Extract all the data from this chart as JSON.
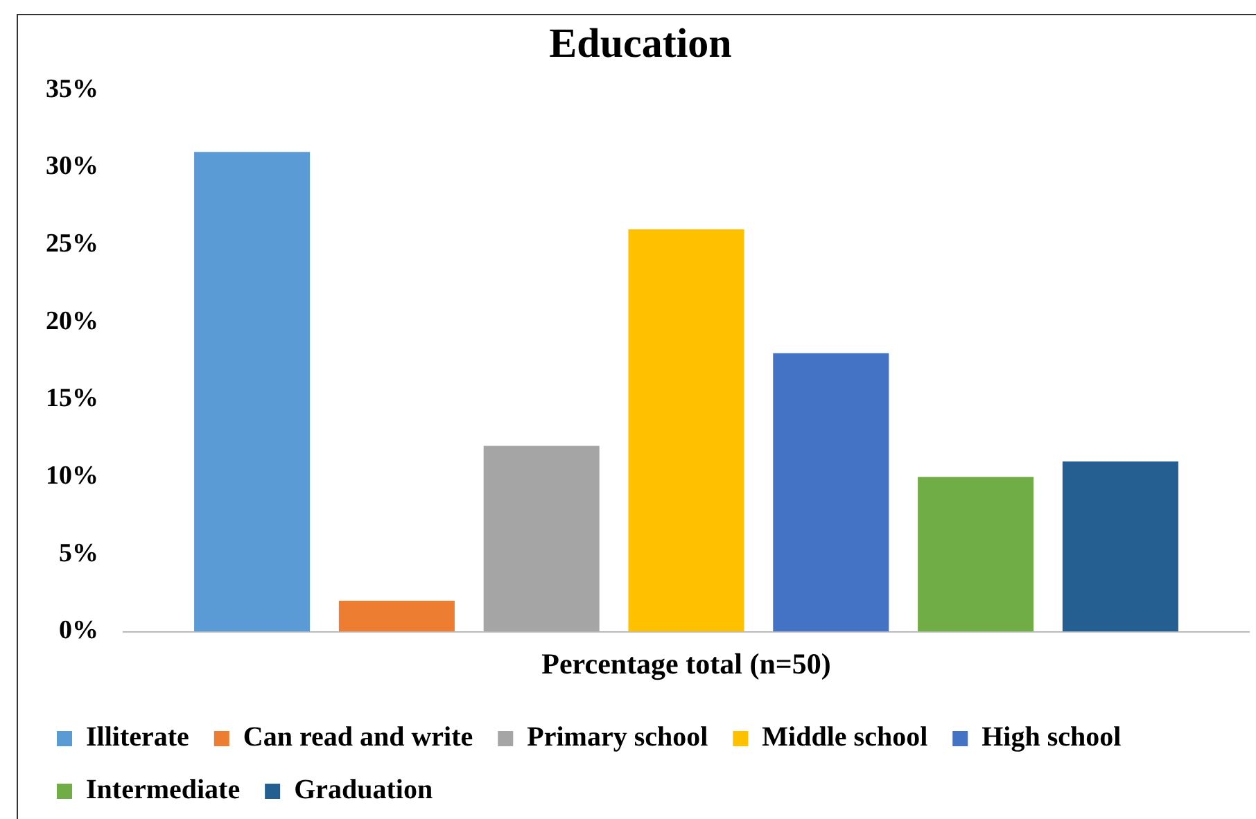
{
  "chart_data": {
    "type": "bar",
    "title": "Education",
    "categories": [
      "Percentage total (n=50)"
    ],
    "series": [
      {
        "name": "Illiterate",
        "color": "#5b9bd5",
        "values": [
          31
        ]
      },
      {
        "name": "Can read and write",
        "color": "#ed7d31",
        "values": [
          2
        ]
      },
      {
        "name": "Primary school",
        "color": "#a5a5a5",
        "values": [
          12
        ]
      },
      {
        "name": "Middle school",
        "color": "#ffc000",
        "values": [
          26
        ]
      },
      {
        "name": "High school",
        "color": "#4472c4",
        "values": [
          18
        ]
      },
      {
        "name": "Intermediate",
        "color": "#70ad47",
        "values": [
          10
        ]
      },
      {
        "name": "Graduation",
        "color": "#255e91",
        "values": [
          11
        ]
      }
    ],
    "ylim": [
      0,
      35
    ],
    "yticks": [
      {
        "value": 0,
        "label": "0%"
      },
      {
        "value": 5,
        "label": "5%"
      },
      {
        "value": 10,
        "label": "10%"
      },
      {
        "value": 15,
        "label": "15%"
      },
      {
        "value": 20,
        "label": "20%"
      },
      {
        "value": 25,
        "label": "25%"
      },
      {
        "value": 30,
        "label": "30%"
      },
      {
        "value": 35,
        "label": "35%"
      }
    ],
    "grid": false,
    "legend": "bottom"
  }
}
